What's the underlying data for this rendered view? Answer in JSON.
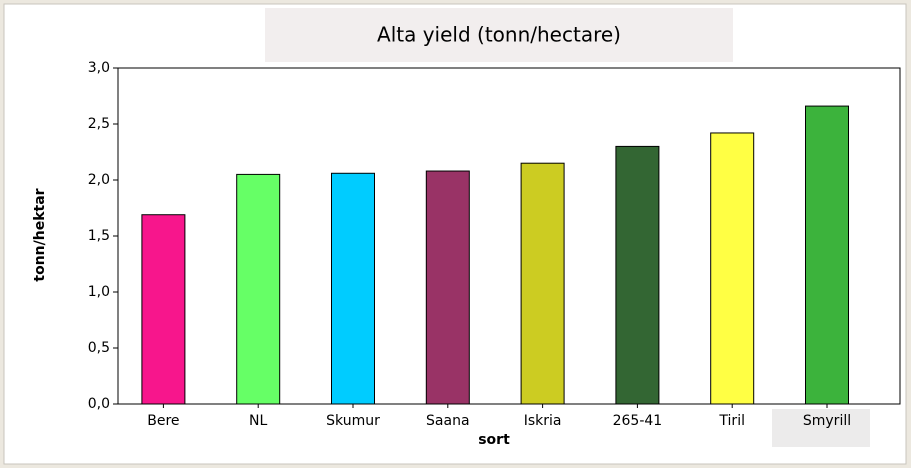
{
  "chart_data": {
    "type": "bar",
    "title": "Alta yield (tonn/hectare)",
    "x_label": "sort",
    "y_label": "tonn/hektar",
    "categories": [
      "Bere",
      "NL",
      "Skumur",
      "Saana",
      "Iskria",
      "265-41",
      "Tiril",
      "Smyrill"
    ],
    "values": [
      1.69,
      2.05,
      2.06,
      2.08,
      2.15,
      2.3,
      2.42,
      2.66
    ],
    "colors": [
      "#f7168c",
      "#66ff66",
      "#00ccff",
      "#993366",
      "#cccc22",
      "#336633",
      "#ffff44",
      "#3cb33c"
    ],
    "ylim": [
      0,
      3.0
    ],
    "yticks": [
      {
        "value": 0,
        "label": "0,0"
      },
      {
        "value": 0.5,
        "label": "0,5"
      },
      {
        "value": 1.0,
        "label": "1,0"
      },
      {
        "value": 1.5,
        "label": "1,5"
      },
      {
        "value": 2.0,
        "label": "2,0"
      },
      {
        "value": 2.5,
        "label": "2,5"
      },
      {
        "value": 3.0,
        "label": "3,0"
      }
    ],
    "grid": false
  }
}
